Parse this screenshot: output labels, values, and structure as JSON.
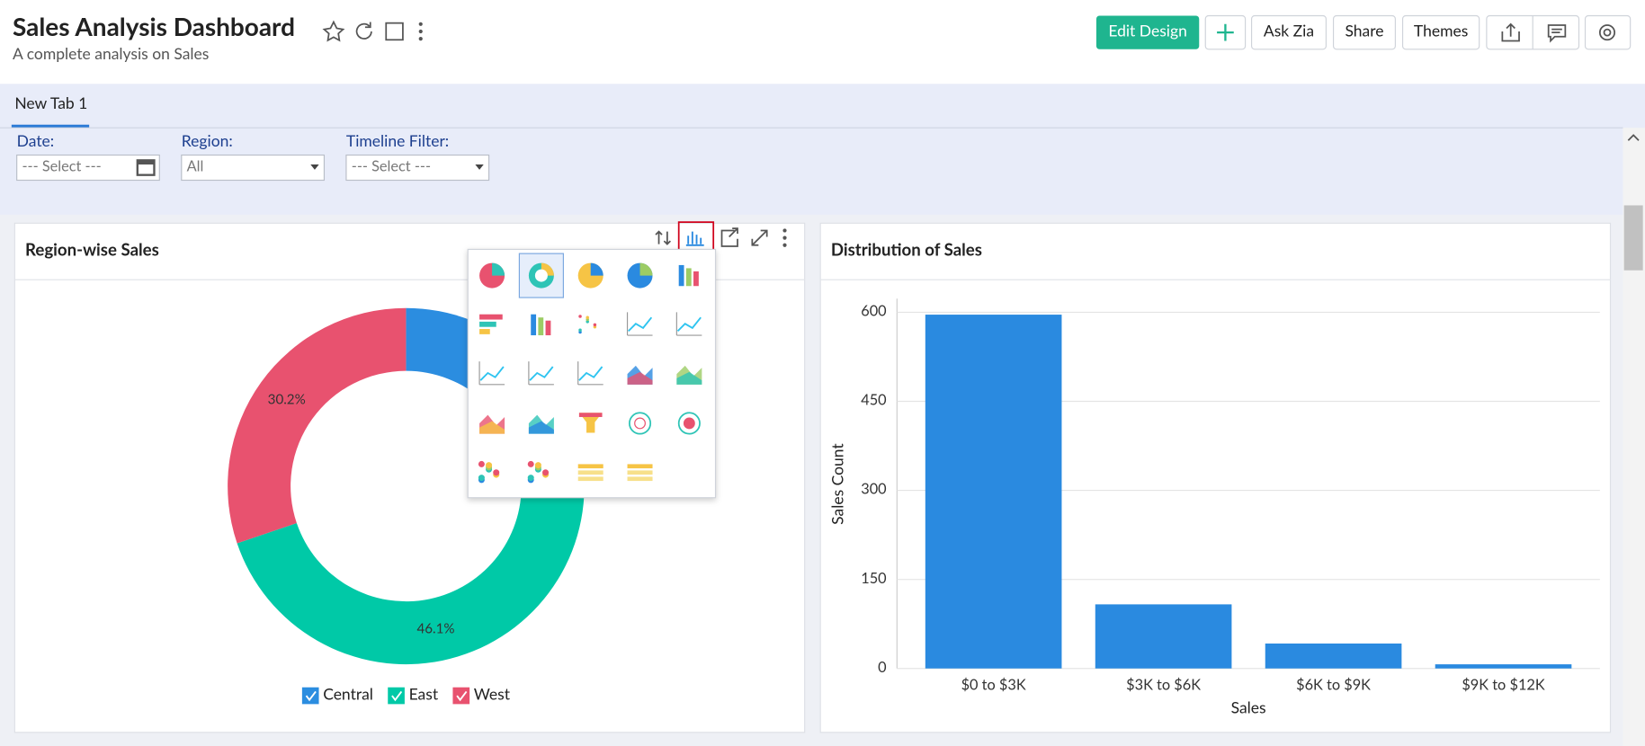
{
  "header": {
    "title": "Sales Analysis Dashboard",
    "subtitle": "A complete analysis on Sales",
    "buttons": [
      "Edit Design",
      "Ask Zia",
      "Share",
      "Themes"
    ]
  },
  "tabs": [
    "New Tab 1"
  ],
  "filters": [
    {
      "label": "Date:",
      "value": "--- Select ---"
    },
    {
      "label": "Region:",
      "value": "All"
    },
    {
      "label": "Timeline Filter:",
      "value": "--- Select ---"
    }
  ],
  "chart_data": [
    {
      "type": "donut",
      "title": "Region-wise Sales",
      "categories": [
        "Central",
        "East",
        "West"
      ],
      "values": [
        23.7,
        46.1,
        30.2
      ],
      "value_labels": [
        null,
        "46.1%",
        "30.2%"
      ],
      "colors": [
        "#2b8de0",
        "#00c9a7",
        "#e8526f"
      ],
      "legend": "bottom"
    },
    {
      "type": "bar",
      "title": "Distribution of Sales",
      "categories": [
        "$0 to $3K",
        "$3K to $6K",
        "$6K to $9K",
        "$9K to $12K"
      ],
      "values": [
        596,
        108,
        42,
        7
      ],
      "color": "#2a8ae0",
      "xlabel": "Sales",
      "ylabel": "Sales Count",
      "ylim": [
        0,
        623
      ],
      "yticks": [
        0,
        150,
        300,
        450,
        600
      ],
      "grid": true
    }
  ]
}
